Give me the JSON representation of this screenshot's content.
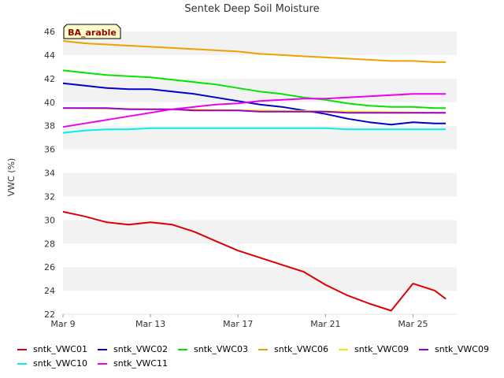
{
  "chart_data": {
    "type": "line",
    "title": "Sentek Deep Soil Moisture",
    "xlabel": "",
    "ylabel": "VWC (%)",
    "ylim": [
      22,
      46
    ],
    "yticks": [
      22,
      24,
      26,
      28,
      30,
      32,
      34,
      36,
      38,
      40,
      42,
      44,
      46
    ],
    "xlim": [
      "2024-03-09",
      "2024-03-27"
    ],
    "xticks": [
      {
        "label": "Mar 9",
        "date": "2024-03-09"
      },
      {
        "label": "Mar 13",
        "date": "2024-03-13"
      },
      {
        "label": "Mar 17",
        "date": "2024-03-17"
      },
      {
        "label": "Mar 21",
        "date": "2024-03-21"
      },
      {
        "label": "Mar 25",
        "date": "2024-03-25"
      }
    ],
    "grid": "alternating horizontal bands",
    "legend_position": "bottom",
    "annotation": "BA_arable",
    "series": [
      {
        "name": "sntk_VWC01",
        "color": "#dd0000",
        "x": [
          "2024-03-09",
          "2024-03-10",
          "2024-03-11",
          "2024-03-12",
          "2024-03-13",
          "2024-03-14",
          "2024-03-15",
          "2024-03-16",
          "2024-03-17",
          "2024-03-18",
          "2024-03-19",
          "2024-03-20",
          "2024-03-21",
          "2024-03-22",
          "2024-03-23",
          "2024-03-24",
          "2024-03-25",
          "2024-03-26",
          "2024-03-26.5"
        ],
        "y": [
          30.7,
          30.3,
          29.8,
          29.6,
          29.8,
          29.6,
          29.0,
          28.2,
          27.4,
          26.8,
          26.2,
          25.6,
          24.5,
          23.6,
          22.9,
          22.3,
          24.6,
          24.0,
          23.3
        ]
      },
      {
        "name": "sntk_VWC02",
        "color": "#0000cc",
        "x": [
          "2024-03-09",
          "2024-03-10",
          "2024-03-11",
          "2024-03-12",
          "2024-03-13",
          "2024-03-14",
          "2024-03-15",
          "2024-03-16",
          "2024-03-17",
          "2024-03-18",
          "2024-03-19",
          "2024-03-20",
          "2024-03-21",
          "2024-03-22",
          "2024-03-23",
          "2024-03-24",
          "2024-03-25",
          "2024-03-26",
          "2024-03-26.5"
        ],
        "y": [
          41.6,
          41.4,
          41.2,
          41.1,
          41.1,
          40.9,
          40.7,
          40.4,
          40.1,
          39.8,
          39.6,
          39.3,
          39.0,
          38.6,
          38.3,
          38.1,
          38.3,
          38.2,
          38.2
        ]
      },
      {
        "name": "sntk_VWC03",
        "color": "#00e600",
        "x": [
          "2024-03-09",
          "2024-03-10",
          "2024-03-11",
          "2024-03-12",
          "2024-03-13",
          "2024-03-14",
          "2024-03-15",
          "2024-03-16",
          "2024-03-17",
          "2024-03-18",
          "2024-03-19",
          "2024-03-20",
          "2024-03-21",
          "2024-03-22",
          "2024-03-23",
          "2024-03-24",
          "2024-03-25",
          "2024-03-26",
          "2024-03-26.5"
        ],
        "y": [
          42.7,
          42.5,
          42.3,
          42.2,
          42.1,
          41.9,
          41.7,
          41.5,
          41.2,
          40.9,
          40.7,
          40.4,
          40.2,
          39.9,
          39.7,
          39.6,
          39.6,
          39.5,
          39.5
        ]
      },
      {
        "name": "sntk_VWC06",
        "color": "#f0a000",
        "x": [
          "2024-03-09",
          "2024-03-10",
          "2024-03-11",
          "2024-03-12",
          "2024-03-13",
          "2024-03-14",
          "2024-03-15",
          "2024-03-16",
          "2024-03-17",
          "2024-03-18",
          "2024-03-19",
          "2024-03-20",
          "2024-03-21",
          "2024-03-22",
          "2024-03-23",
          "2024-03-24",
          "2024-03-25",
          "2024-03-26",
          "2024-03-26.5"
        ],
        "y": [
          45.2,
          45.0,
          44.9,
          44.8,
          44.7,
          44.6,
          44.5,
          44.4,
          44.3,
          44.1,
          44.0,
          43.9,
          43.8,
          43.7,
          43.6,
          43.5,
          43.5,
          43.4,
          43.4
        ]
      },
      {
        "name": "sntk_VWC09",
        "color": "#eeee00",
        "x": [
          "2024-03-09",
          "2024-03-26.5"
        ],
        "y": [
          39.5,
          39.1
        ]
      },
      {
        "name": "sntk_VWC09",
        "color": "#9900cc",
        "x": [
          "2024-03-09",
          "2024-03-10",
          "2024-03-11",
          "2024-03-12",
          "2024-03-13",
          "2024-03-14",
          "2024-03-15",
          "2024-03-16",
          "2024-03-17",
          "2024-03-18",
          "2024-03-19",
          "2024-03-20",
          "2024-03-21",
          "2024-03-22",
          "2024-03-23",
          "2024-03-24",
          "2024-03-25",
          "2024-03-26",
          "2024-03-26.5"
        ],
        "y": [
          39.5,
          39.5,
          39.5,
          39.4,
          39.4,
          39.4,
          39.3,
          39.3,
          39.3,
          39.2,
          39.2,
          39.2,
          39.2,
          39.1,
          39.1,
          39.1,
          39.1,
          39.1,
          39.1
        ]
      },
      {
        "name": "sntk_VWC10",
        "color": "#00f0f0",
        "x": [
          "2024-03-09",
          "2024-03-10",
          "2024-03-11",
          "2024-03-12",
          "2024-03-13",
          "2024-03-14",
          "2024-03-15",
          "2024-03-16",
          "2024-03-17",
          "2024-03-18",
          "2024-03-19",
          "2024-03-20",
          "2024-03-21",
          "2024-03-22",
          "2024-03-23",
          "2024-03-24",
          "2024-03-25",
          "2024-03-26",
          "2024-03-26.5"
        ],
        "y": [
          37.4,
          37.6,
          37.7,
          37.7,
          37.8,
          37.8,
          37.8,
          37.8,
          37.8,
          37.8,
          37.8,
          37.8,
          37.8,
          37.7,
          37.7,
          37.7,
          37.7,
          37.7,
          37.7
        ]
      },
      {
        "name": "sntk_VWC11",
        "color": "#ee00ee",
        "x": [
          "2024-03-09",
          "2024-03-10",
          "2024-03-11",
          "2024-03-12",
          "2024-03-13",
          "2024-03-14",
          "2024-03-15",
          "2024-03-16",
          "2024-03-17",
          "2024-03-18",
          "2024-03-19",
          "2024-03-20",
          "2024-03-21",
          "2024-03-22",
          "2024-03-23",
          "2024-03-24",
          "2024-03-25",
          "2024-03-26",
          "2024-03-26.5"
        ],
        "y": [
          37.9,
          38.2,
          38.5,
          38.8,
          39.1,
          39.4,
          39.6,
          39.8,
          39.9,
          40.1,
          40.2,
          40.3,
          40.3,
          40.4,
          40.5,
          40.6,
          40.7,
          40.7,
          40.7
        ]
      }
    ]
  }
}
